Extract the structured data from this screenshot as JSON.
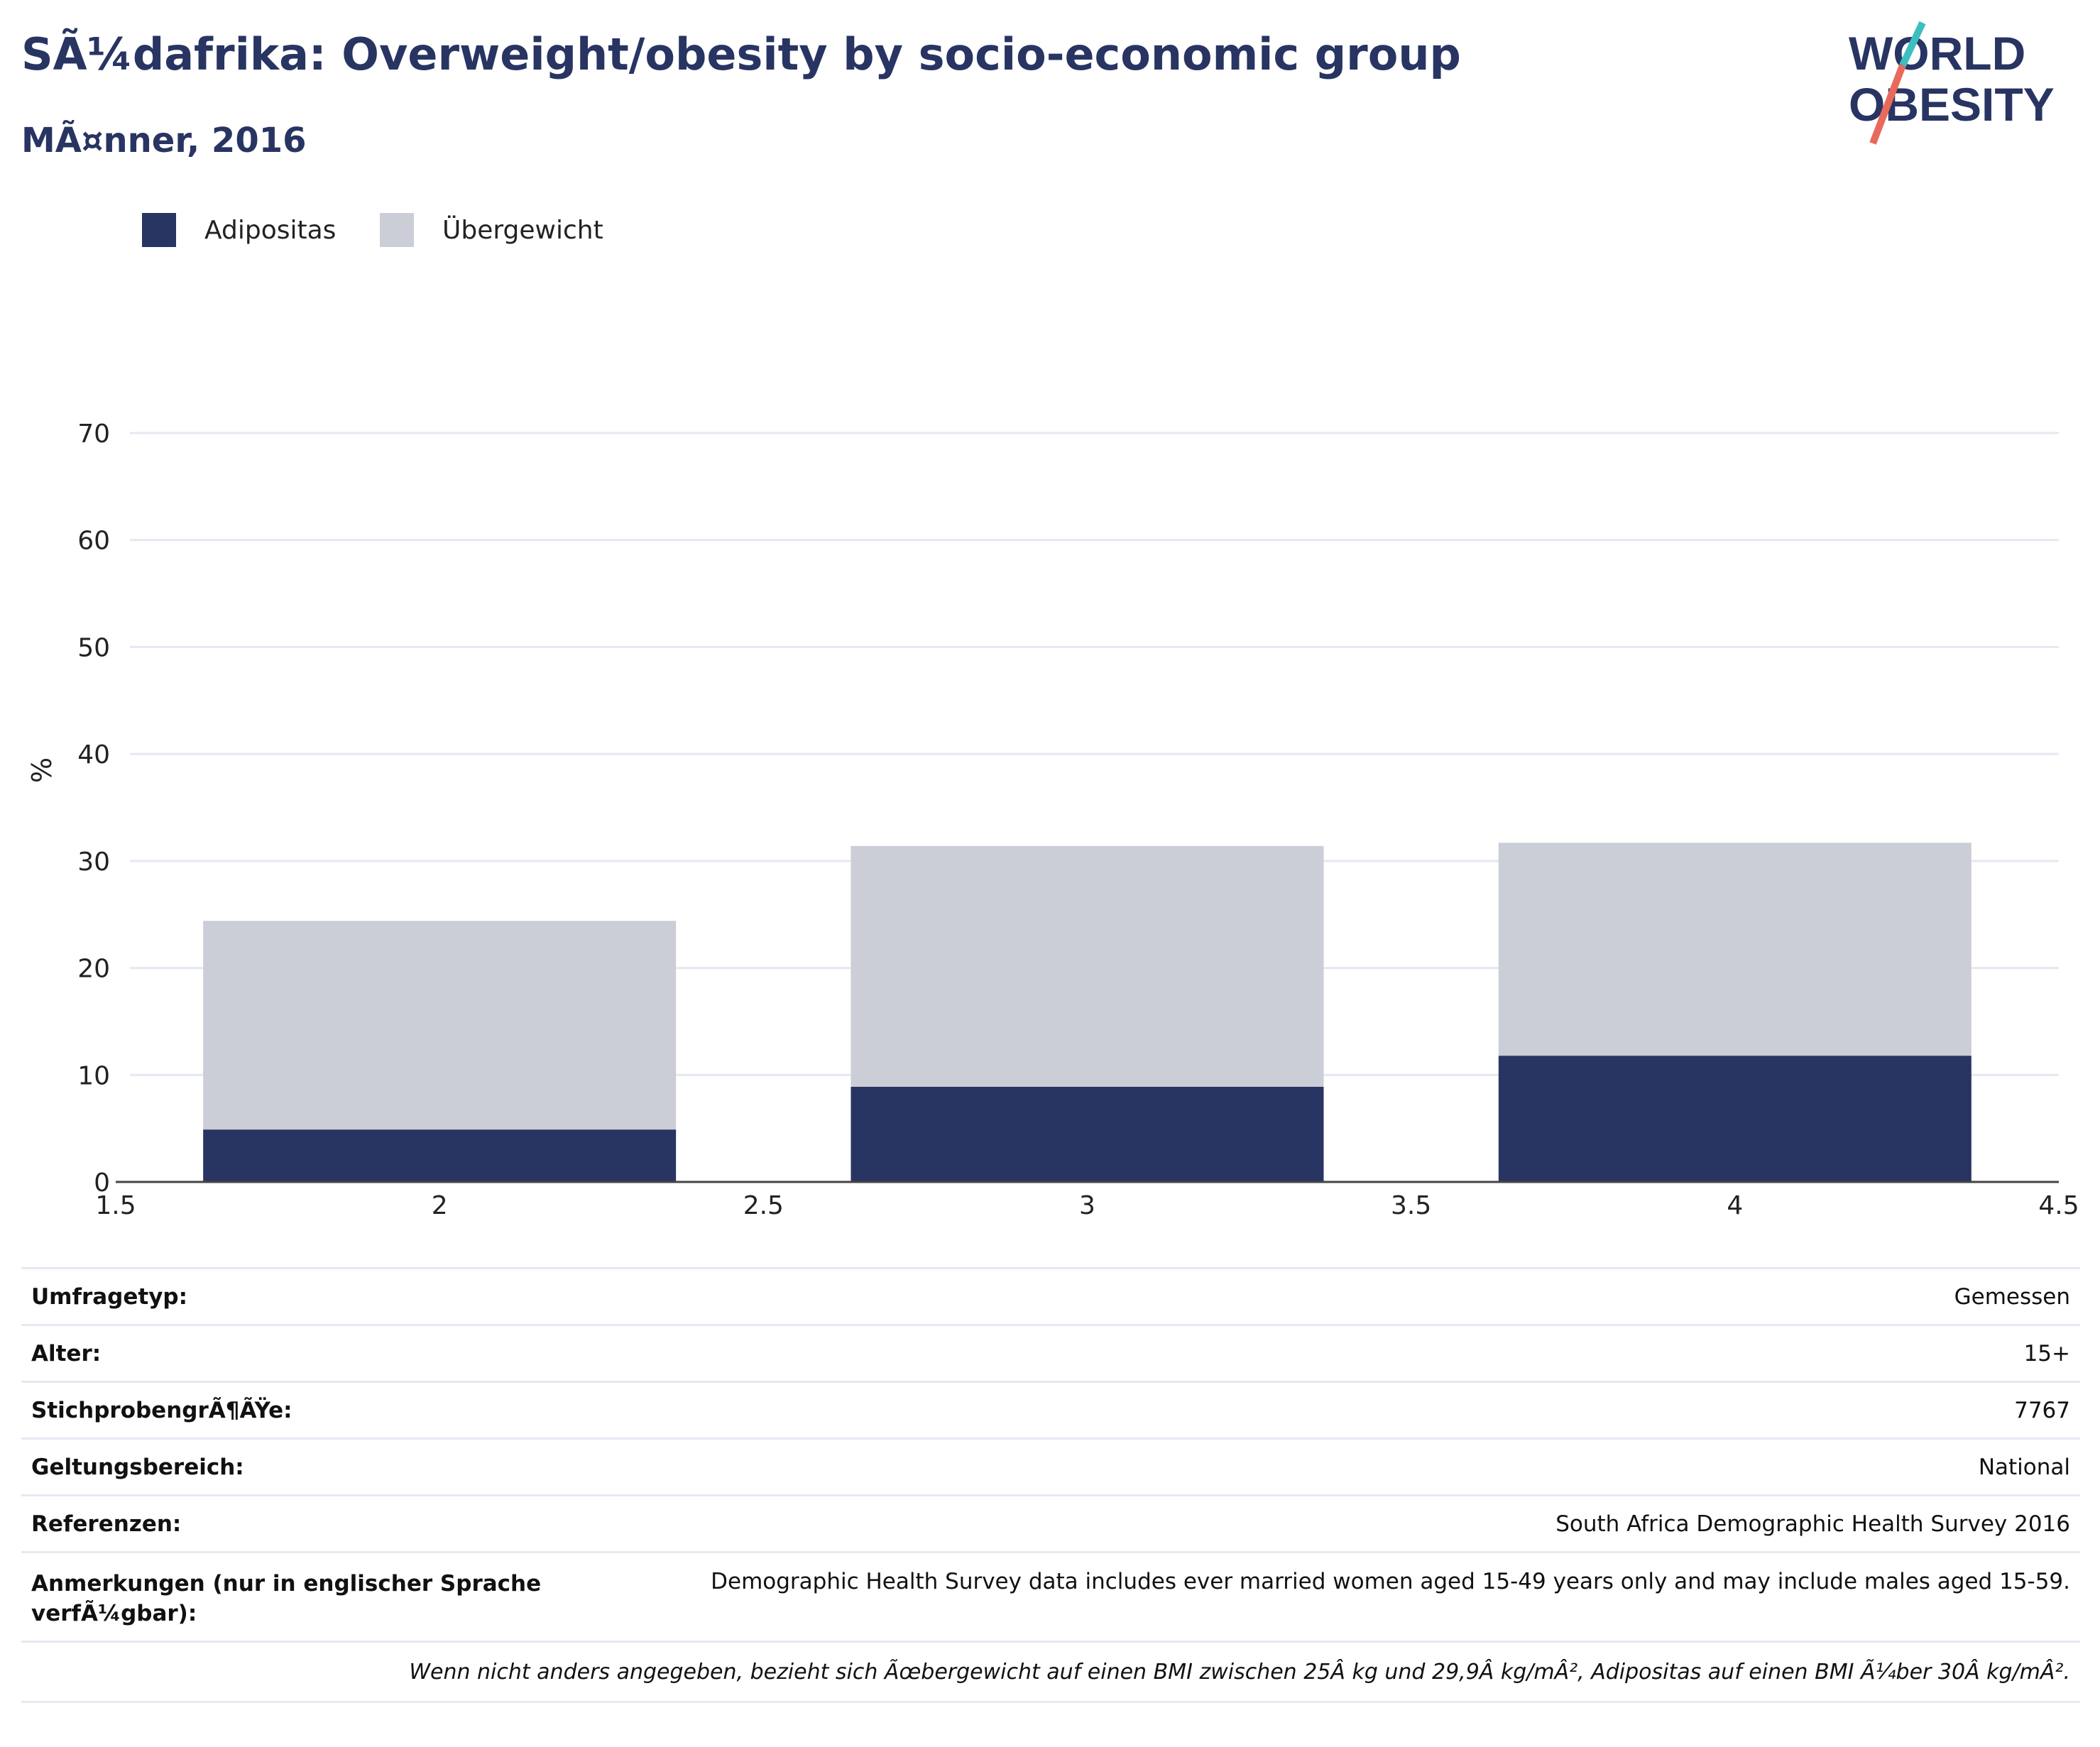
{
  "header": {
    "title": "SÃ¼dafrika: Overweight/obesity by socio-economic group",
    "subtitle": "MÃ¤nner, 2016"
  },
  "logo": {
    "line1": "WORLD",
    "line2": "OBESITY",
    "accent_colors": [
      "#3dbfc0",
      "#e96a5c"
    ],
    "text_color": "#283462"
  },
  "legend": {
    "items": [
      {
        "label": "Adipositas",
        "color": "#283462"
      },
      {
        "label": "Übergewicht",
        "color": "#cbcdd7"
      }
    ]
  },
  "chart_data": {
    "type": "bar",
    "stacked": true,
    "x": [
      2,
      3,
      4
    ],
    "xlim": [
      1.5,
      4.5
    ],
    "xticks": [
      "1.5",
      "2",
      "2.5",
      "3",
      "3.5",
      "4",
      "4.5"
    ],
    "ylabel": "%",
    "ylim": [
      0,
      70
    ],
    "yticks": [
      "0",
      "10",
      "20",
      "30",
      "40",
      "50",
      "60",
      "70"
    ],
    "grid": true,
    "legend_position": "top-left",
    "series": [
      {
        "name": "Adipositas",
        "color": "#283462",
        "values": [
          4.9,
          8.9,
          11.8
        ]
      },
      {
        "name": "Übergewicht",
        "color": "#cbcdd7",
        "values": [
          19.5,
          22.5,
          19.9
        ]
      }
    ]
  },
  "info": {
    "rows": [
      {
        "label": "Umfragetyp:",
        "value": "Gemessen"
      },
      {
        "label": "Alter:",
        "value": "15+"
      },
      {
        "label": "StichprobengrÃ¶ÃŸe:",
        "value": "7767"
      },
      {
        "label": "Geltungsbereich:",
        "value": "National"
      },
      {
        "label": "Referenzen:",
        "value": "South Africa Demographic Health Survey 2016"
      }
    ],
    "notes_label": "Anmerkungen (nur in englischer Sprache verfÃ¼gbar):",
    "notes_value": "Demographic Health Survey data includes ever married women aged 15-49 years only and may include males aged 15-59.",
    "footnote": "Wenn nicht anders angegeben, bezieht sich Ãœbergewicht auf einen BMI zwischen 25Â kg und 29,9Â kg/mÂ², Adipositas auf einen BMI Ã¼ber 30Â kg/mÂ²."
  }
}
